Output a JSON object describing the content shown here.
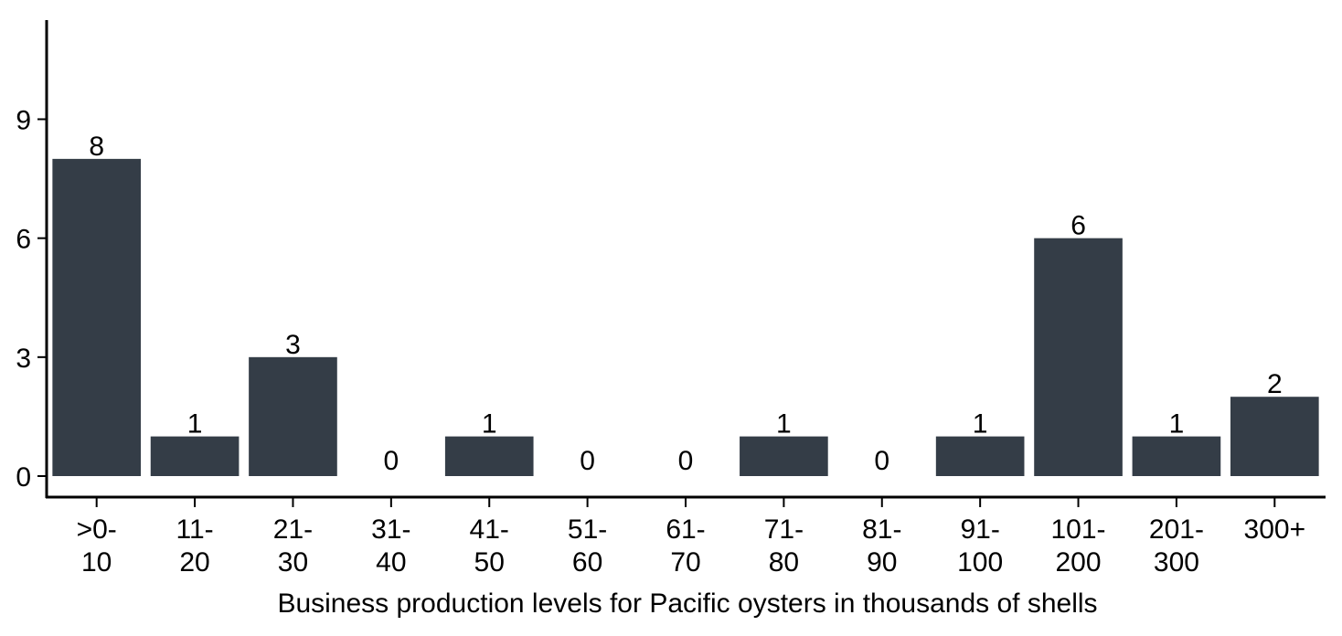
{
  "chart_data": {
    "type": "bar",
    "categories": [
      ">0-\n10",
      "11-\n20",
      "21-\n30",
      "31-\n40",
      "41-\n50",
      "51-\n60",
      "61-\n70",
      "71-\n80",
      "81-\n90",
      "91-\n100",
      "101-\n200",
      "201-\n300",
      "300+"
    ],
    "values": [
      8,
      1,
      3,
      0,
      1,
      0,
      0,
      1,
      0,
      1,
      6,
      1,
      2
    ],
    "data_labels": [
      "8",
      "1",
      "3",
      "0",
      "1",
      "0",
      "0",
      "1",
      "0",
      "1",
      "6",
      "1",
      "2"
    ],
    "title": "",
    "xlabel": "Business production levels for Pacific oysters in thousands of shells",
    "ylabel": "",
    "ylim": [
      0,
      11.5
    ],
    "yticks": [
      0,
      3,
      6,
      9
    ],
    "ytick_labels": [
      "0",
      "3",
      "6",
      "9"
    ],
    "bar_color": "#343d47",
    "grid": false,
    "legend": "none"
  }
}
